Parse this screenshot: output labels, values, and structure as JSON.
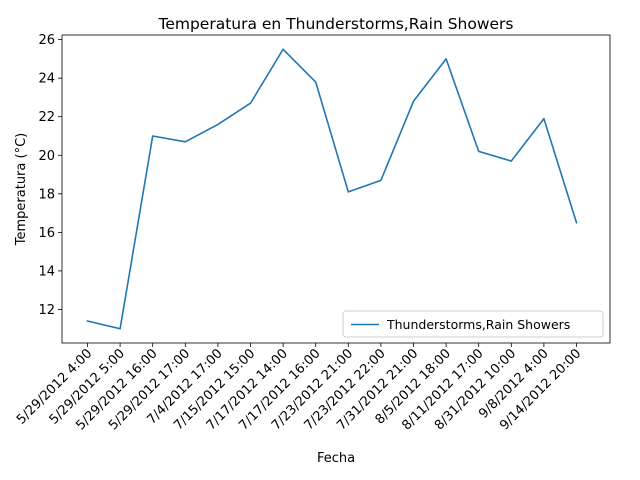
{
  "chart_data": {
    "type": "line",
    "title": "Temperatura en Thunderstorms,Rain Showers",
    "xlabel": "Fecha",
    "ylabel": "Temperatura (°C)",
    "categories": [
      "5/29/2012 4:00",
      "5/29/2012 5:00",
      "5/29/2012 16:00",
      "5/29/2012 17:00",
      "7/4/2012 17:00",
      "7/15/2012 15:00",
      "7/17/2012 14:00",
      "7/17/2012 16:00",
      "7/23/2012 21:00",
      "7/23/2012 22:00",
      "7/31/2012 21:00",
      "8/5/2012 18:00",
      "8/11/2012 17:00",
      "8/31/2012 10:00",
      "9/8/2012 4:00",
      "9/14/2012 20:00"
    ],
    "series": [
      {
        "name": "Thunderstorms,Rain Showers",
        "color": "#1f77b4",
        "values": [
          11.4,
          11.0,
          21.0,
          20.7,
          21.6,
          22.7,
          25.5,
          23.8,
          18.1,
          18.7,
          22.8,
          25.0,
          20.2,
          19.7,
          21.9,
          16.5
        ]
      }
    ],
    "yticks": [
      12,
      14,
      16,
      18,
      20,
      22,
      24,
      26
    ],
    "ylim": [
      10.26,
      26.24
    ],
    "grid": false,
    "legend_position": "lower-right"
  }
}
